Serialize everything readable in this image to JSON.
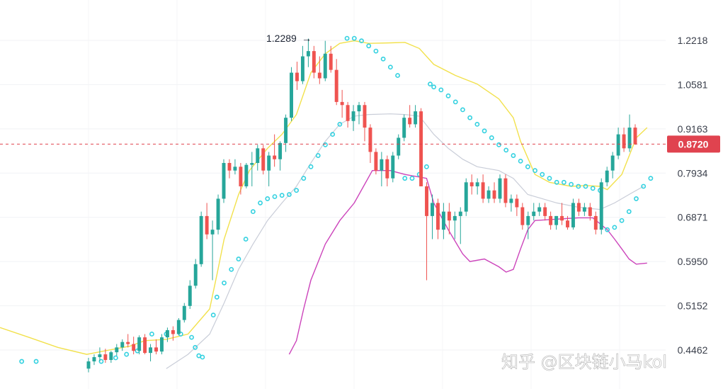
{
  "chart_data": {
    "type": "candlestick",
    "y_axis": {
      "position": "right",
      "ticks": [
        "1.2218",
        "1.0581",
        "0.9163",
        "0.7934",
        "0.6871",
        "0.5950",
        "0.5152",
        "0.4462"
      ],
      "tick_values": [
        1.2218,
        1.0581,
        0.9163,
        0.7934,
        0.6871,
        0.595,
        0.5152,
        0.4462
      ],
      "scale": "log"
    },
    "high_annotation": {
      "text": "1.2289",
      "value": 1.2289
    },
    "current_price": {
      "label": "0.8720",
      "value": 0.872,
      "color": "#e0434f"
    },
    "grid": true,
    "colors": {
      "up": "#26a69a",
      "down": "#ef5350",
      "bb_upper": "#f2e14c",
      "bb_middle": "#c9cdd8",
      "bb_lower": "#cc44bb",
      "sar": "#33d1e0"
    },
    "candles": [
      [
        0.42,
        0.435,
        0.415,
        0.43
      ],
      [
        0.43,
        0.44,
        0.425,
        0.436
      ],
      [
        0.436,
        0.45,
        0.43,
        0.44
      ],
      [
        0.44,
        0.448,
        0.428,
        0.432
      ],
      [
        0.432,
        0.445,
        0.428,
        0.443
      ],
      [
        0.443,
        0.455,
        0.438,
        0.45
      ],
      [
        0.45,
        0.462,
        0.445,
        0.458
      ],
      [
        0.458,
        0.47,
        0.45,
        0.455
      ],
      [
        0.455,
        0.466,
        0.44,
        0.445
      ],
      [
        0.445,
        0.468,
        0.44,
        0.465
      ],
      [
        0.465,
        0.47,
        0.44,
        0.442
      ],
      [
        0.442,
        0.455,
        0.43,
        0.45
      ],
      [
        0.45,
        0.462,
        0.44,
        0.444
      ],
      [
        0.444,
        0.47,
        0.44,
        0.465
      ],
      [
        0.465,
        0.48,
        0.458,
        0.476
      ],
      [
        0.476,
        0.482,
        0.46,
        0.47
      ],
      [
        0.47,
        0.495,
        0.468,
        0.492
      ],
      [
        0.492,
        0.52,
        0.488,
        0.515
      ],
      [
        0.515,
        0.56,
        0.51,
        0.55
      ],
      [
        0.55,
        0.6,
        0.545,
        0.59
      ],
      [
        0.59,
        0.7,
        0.585,
        0.69
      ],
      [
        0.69,
        0.72,
        0.64,
        0.65
      ],
      [
        0.65,
        0.68,
        0.56,
        0.66
      ],
      [
        0.66,
        0.74,
        0.65,
        0.73
      ],
      [
        0.73,
        0.83,
        0.72,
        0.82
      ],
      [
        0.82,
        0.83,
        0.78,
        0.8
      ],
      [
        0.8,
        0.83,
        0.79,
        0.81
      ],
      [
        0.81,
        0.82,
        0.74,
        0.76
      ],
      [
        0.76,
        0.82,
        0.755,
        0.815
      ],
      [
        0.815,
        0.85,
        0.76,
        0.82
      ],
      [
        0.82,
        0.87,
        0.8,
        0.86
      ],
      [
        0.86,
        0.87,
        0.79,
        0.8
      ],
      [
        0.8,
        0.85,
        0.76,
        0.84
      ],
      [
        0.84,
        0.9,
        0.81,
        0.83
      ],
      [
        0.83,
        0.88,
        0.8,
        0.875
      ],
      [
        0.875,
        0.96,
        0.85,
        0.95
      ],
      [
        0.95,
        1.12,
        0.94,
        1.1
      ],
      [
        1.1,
        1.14,
        1.04,
        1.07
      ],
      [
        1.07,
        1.2,
        1.06,
        1.16
      ],
      [
        1.16,
        1.229,
        1.12,
        1.18
      ],
      [
        1.18,
        1.2,
        1.08,
        1.1
      ],
      [
        1.1,
        1.16,
        1.06,
        1.08
      ],
      [
        1.08,
        1.22,
        1.07,
        1.17
      ],
      [
        1.17,
        1.2,
        1.1,
        1.11
      ],
      [
        1.11,
        1.15,
        0.99,
        1.0
      ],
      [
        1.0,
        1.04,
        0.95,
        0.99
      ],
      [
        0.99,
        1.0,
        0.92,
        0.94
      ],
      [
        0.94,
        0.99,
        0.91,
        0.97
      ],
      [
        0.97,
        1.0,
        0.93,
        0.99
      ],
      [
        0.99,
        1.0,
        0.88,
        0.92
      ],
      [
        0.92,
        0.93,
        0.82,
        0.85
      ],
      [
        0.85,
        0.86,
        0.79,
        0.8
      ],
      [
        0.8,
        0.85,
        0.76,
        0.83
      ],
      [
        0.83,
        0.84,
        0.76,
        0.78
      ],
      [
        0.78,
        0.85,
        0.77,
        0.84
      ],
      [
        0.84,
        0.9,
        0.83,
        0.89
      ],
      [
        0.89,
        0.96,
        0.88,
        0.95
      ],
      [
        0.95,
        0.99,
        0.92,
        0.93
      ],
      [
        0.93,
        0.99,
        0.92,
        0.97
      ],
      [
        0.97,
        0.98,
        0.76,
        0.76
      ],
      [
        0.76,
        0.77,
        0.56,
        0.69
      ],
      [
        0.69,
        0.74,
        0.64,
        0.72
      ],
      [
        0.72,
        0.73,
        0.64,
        0.66
      ],
      [
        0.66,
        0.72,
        0.64,
        0.7
      ],
      [
        0.7,
        0.72,
        0.65,
        0.68
      ],
      [
        0.68,
        0.7,
        0.64,
        0.69
      ],
      [
        0.69,
        0.71,
        0.63,
        0.7
      ],
      [
        0.7,
        0.78,
        0.69,
        0.77
      ],
      [
        0.77,
        0.79,
        0.74,
        0.76
      ],
      [
        0.76,
        0.78,
        0.74,
        0.77
      ],
      [
        0.77,
        0.79,
        0.72,
        0.73
      ],
      [
        0.73,
        0.76,
        0.72,
        0.75
      ],
      [
        0.75,
        0.77,
        0.72,
        0.73
      ],
      [
        0.73,
        0.79,
        0.72,
        0.78
      ],
      [
        0.78,
        0.79,
        0.71,
        0.72
      ],
      [
        0.72,
        0.74,
        0.7,
        0.73
      ],
      [
        0.73,
        0.74,
        0.69,
        0.71
      ],
      [
        0.71,
        0.72,
        0.66,
        0.67
      ],
      [
        0.67,
        0.7,
        0.64,
        0.69
      ],
      [
        0.69,
        0.72,
        0.68,
        0.7
      ],
      [
        0.7,
        0.72,
        0.69,
        0.71
      ],
      [
        0.71,
        0.72,
        0.68,
        0.69
      ],
      [
        0.69,
        0.7,
        0.66,
        0.67
      ],
      [
        0.67,
        0.69,
        0.66,
        0.69
      ],
      [
        0.69,
        0.72,
        0.67,
        0.68
      ],
      [
        0.68,
        0.69,
        0.66,
        0.665
      ],
      [
        0.665,
        0.73,
        0.66,
        0.72
      ],
      [
        0.72,
        0.73,
        0.69,
        0.7
      ],
      [
        0.7,
        0.72,
        0.69,
        0.71
      ],
      [
        0.71,
        0.72,
        0.68,
        0.69
      ],
      [
        0.69,
        0.7,
        0.65,
        0.66
      ],
      [
        0.66,
        0.78,
        0.65,
        0.77
      ],
      [
        0.77,
        0.81,
        0.76,
        0.8
      ],
      [
        0.8,
        0.85,
        0.78,
        0.84
      ],
      [
        0.84,
        0.92,
        0.83,
        0.9
      ],
      [
        0.9,
        0.92,
        0.85,
        0.86
      ],
      [
        0.86,
        0.96,
        0.85,
        0.92
      ],
      [
        0.92,
        0.93,
        0.87,
        0.872
      ]
    ],
    "bb_upper": [
      [
        0.0,
        0.48
      ],
      [
        0.04,
        0.465
      ],
      [
        0.08,
        0.45
      ],
      [
        0.12,
        0.44
      ],
      [
        0.15,
        0.446
      ],
      [
        0.18,
        0.452
      ],
      [
        0.2,
        0.46
      ],
      [
        0.23,
        0.462
      ],
      [
        0.26,
        0.47
      ],
      [
        0.29,
        0.51
      ],
      [
        0.3,
        0.57
      ],
      [
        0.31,
        0.64
      ],
      [
        0.33,
        0.74
      ],
      [
        0.345,
        0.8
      ],
      [
        0.37,
        0.86
      ],
      [
        0.39,
        0.9
      ],
      [
        0.41,
        0.96
      ],
      [
        0.43,
        1.1
      ],
      [
        0.45,
        1.17
      ],
      [
        0.47,
        1.21
      ],
      [
        0.49,
        1.22
      ],
      [
        0.51,
        1.21
      ],
      [
        0.54,
        1.212
      ],
      [
        0.56,
        1.214
      ],
      [
        0.58,
        1.19
      ],
      [
        0.6,
        1.13
      ],
      [
        0.63,
        1.09
      ],
      [
        0.66,
        1.06
      ],
      [
        0.69,
        1.01
      ],
      [
        0.71,
        0.95
      ],
      [
        0.72,
        0.88
      ],
      [
        0.74,
        0.79
      ],
      [
        0.76,
        0.77
      ],
      [
        0.79,
        0.76
      ],
      [
        0.81,
        0.762
      ],
      [
        0.83,
        0.76
      ],
      [
        0.84,
        0.752
      ],
      [
        0.86,
        0.79
      ],
      [
        0.88,
        0.89
      ],
      [
        0.895,
        0.92
      ]
    ],
    "bb_middle": [
      [
        0.23,
        0.42
      ],
      [
        0.26,
        0.44
      ],
      [
        0.29,
        0.47
      ],
      [
        0.31,
        0.52
      ],
      [
        0.33,
        0.58
      ],
      [
        0.35,
        0.63
      ],
      [
        0.37,
        0.68
      ],
      [
        0.39,
        0.72
      ],
      [
        0.41,
        0.76
      ],
      [
        0.43,
        0.82
      ],
      [
        0.45,
        0.88
      ],
      [
        0.47,
        0.93
      ],
      [
        0.49,
        0.955
      ],
      [
        0.51,
        0.96
      ],
      [
        0.54,
        0.962
      ],
      [
        0.56,
        0.96
      ],
      [
        0.58,
        0.955
      ],
      [
        0.6,
        0.9
      ],
      [
        0.62,
        0.86
      ],
      [
        0.64,
        0.83
      ],
      [
        0.66,
        0.81
      ],
      [
        0.69,
        0.8
      ],
      [
        0.71,
        0.78
      ],
      [
        0.73,
        0.74
      ],
      [
        0.75,
        0.73
      ],
      [
        0.77,
        0.72
      ],
      [
        0.8,
        0.71
      ],
      [
        0.83,
        0.705
      ],
      [
        0.85,
        0.72
      ],
      [
        0.87,
        0.74
      ],
      [
        0.89,
        0.76
      ]
    ],
    "bb_lower": [
      [
        0.4,
        0.44
      ],
      [
        0.41,
        0.46
      ],
      [
        0.42,
        0.51
      ],
      [
        0.43,
        0.56
      ],
      [
        0.45,
        0.63
      ],
      [
        0.47,
        0.68
      ],
      [
        0.49,
        0.72
      ],
      [
        0.515,
        0.8
      ],
      [
        0.54,
        0.8
      ],
      [
        0.56,
        0.79
      ],
      [
        0.59,
        0.78
      ],
      [
        0.6,
        0.72
      ],
      [
        0.62,
        0.66
      ],
      [
        0.64,
        0.61
      ],
      [
        0.65,
        0.595
      ],
      [
        0.67,
        0.6
      ],
      [
        0.69,
        0.585
      ],
      [
        0.7,
        0.575
      ],
      [
        0.71,
        0.58
      ],
      [
        0.72,
        0.62
      ],
      [
        0.73,
        0.66
      ],
      [
        0.74,
        0.68
      ],
      [
        0.76,
        0.682
      ],
      [
        0.78,
        0.684
      ],
      [
        0.8,
        0.686
      ],
      [
        0.82,
        0.686
      ],
      [
        0.84,
        0.66
      ],
      [
        0.85,
        0.64
      ],
      [
        0.86,
        0.62
      ],
      [
        0.87,
        0.6
      ],
      [
        0.88,
        0.59
      ],
      [
        0.895,
        0.592
      ]
    ],
    "sar": [
      [
        0.03,
        0.43
      ],
      [
        0.05,
        0.43
      ],
      [
        0.14,
        0.43
      ],
      [
        0.16,
        0.435
      ],
      [
        0.175,
        0.44
      ],
      [
        0.19,
        0.445
      ],
      [
        0.21,
        0.47
      ],
      [
        0.23,
        0.47
      ],
      [
        0.25,
        0.47
      ],
      [
        0.265,
        0.465
      ],
      [
        0.27,
        0.45
      ],
      [
        0.275,
        0.438
      ],
      [
        0.28,
        0.436
      ],
      [
        0.295,
        0.5
      ],
      [
        0.3,
        0.53
      ],
      [
        0.31,
        0.555
      ],
      [
        0.32,
        0.58
      ],
      [
        0.33,
        0.6
      ],
      [
        0.34,
        0.64
      ],
      [
        0.35,
        0.7
      ],
      [
        0.36,
        0.72
      ],
      [
        0.37,
        0.73
      ],
      [
        0.38,
        0.735
      ],
      [
        0.39,
        0.738
      ],
      [
        0.4,
        0.74
      ],
      [
        0.41,
        0.75
      ],
      [
        0.42,
        0.78
      ],
      [
        0.43,
        0.81
      ],
      [
        0.44,
        0.84
      ],
      [
        0.45,
        0.87
      ],
      [
        0.46,
        0.9
      ],
      [
        0.47,
        0.93
      ],
      [
        0.48,
        1.23
      ],
      [
        0.49,
        1.23
      ],
      [
        0.5,
        1.22
      ],
      [
        0.51,
        1.2
      ],
      [
        0.52,
        1.18
      ],
      [
        0.53,
        1.15
      ],
      [
        0.54,
        1.12
      ],
      [
        0.55,
        1.09
      ],
      [
        0.56,
        0.78
      ],
      [
        0.57,
        0.78
      ],
      [
        0.58,
        0.79
      ],
      [
        0.59,
        0.81
      ],
      [
        0.595,
        1.06
      ],
      [
        0.6,
        1.05
      ],
      [
        0.61,
        1.04
      ],
      [
        0.62,
        1.02
      ],
      [
        0.63,
        1.0
      ],
      [
        0.64,
        0.975
      ],
      [
        0.65,
        0.95
      ],
      [
        0.66,
        0.93
      ],
      [
        0.67,
        0.91
      ],
      [
        0.68,
        0.89
      ],
      [
        0.69,
        0.87
      ],
      [
        0.7,
        0.855
      ],
      [
        0.71,
        0.84
      ],
      [
        0.72,
        0.825
      ],
      [
        0.73,
        0.81
      ],
      [
        0.74,
        0.8
      ],
      [
        0.75,
        0.79
      ],
      [
        0.76,
        0.78
      ],
      [
        0.77,
        0.77
      ],
      [
        0.78,
        0.77
      ],
      [
        0.79,
        0.765
      ],
      [
        0.8,
        0.76
      ],
      [
        0.81,
        0.76
      ],
      [
        0.82,
        0.755
      ],
      [
        0.83,
        0.75
      ],
      [
        0.84,
        0.66
      ],
      [
        0.85,
        0.665
      ],
      [
        0.86,
        0.68
      ],
      [
        0.87,
        0.7
      ],
      [
        0.88,
        0.73
      ],
      [
        0.89,
        0.76
      ],
      [
        0.9,
        0.78
      ]
    ]
  },
  "watermark": {
    "text": "知乎 @区块链小马kol"
  }
}
